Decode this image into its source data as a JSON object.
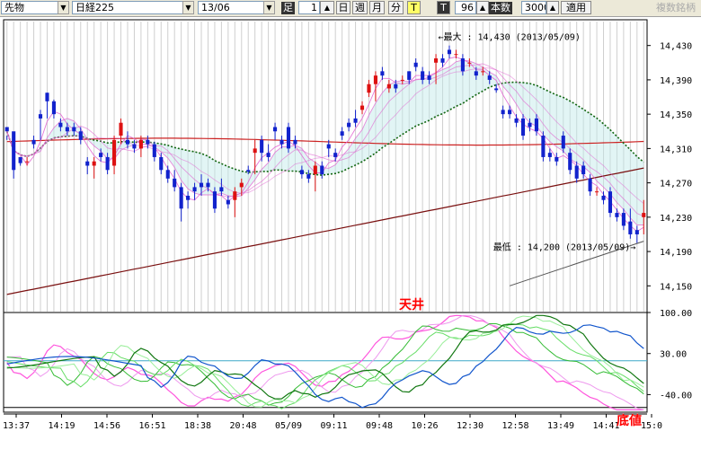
{
  "toolbar": {
    "instrument": "先物",
    "index": "日経225",
    "contract": "13/06",
    "bar_label": "足",
    "period_value": "1",
    "btn_day": "日",
    "btn_week": "週",
    "btn_month": "月",
    "btn_minute": "分",
    "btn_t1": "T",
    "btn_t2": "T",
    "count_value": "96",
    "count_label": "本数",
    "count2_value": "3000",
    "apply_label": "適用",
    "right_label": "複数銘柄"
  },
  "chart_data": [
    {
      "type": "candlestick",
      "title": "",
      "ylim": [
        14120,
        14460
      ],
      "y_ticks": [
        "14,430",
        "14,390",
        "14,350",
        "14,310",
        "14,270",
        "14,230",
        "14,190",
        "14,150"
      ],
      "y_tick_values": [
        14430,
        14390,
        14350,
        14310,
        14270,
        14230,
        14190,
        14150
      ],
      "colors": {
        "up": "#dd1111",
        "down": "#1122cc",
        "ma_fast": "#e060d0",
        "ma_mid": "#cc2222",
        "ma_slow": "#7a1010",
        "ma_green": "#116611",
        "cloud": "#bfe9e9",
        "trend": "#555555"
      },
      "candles": [
        [
          14335,
          14320,
          14325,
          14330
        ],
        [
          14330,
          14275,
          14305,
          14285
        ],
        [
          14300,
          14290,
          14295,
          14293
        ],
        [
          14295,
          14290,
          14300,
          14295
        ],
        [
          14320,
          14310,
          14325,
          14315
        ],
        [
          14350,
          14320,
          14355,
          14345
        ],
        [
          14375,
          14345,
          14375,
          14365
        ],
        [
          14365,
          14345,
          14367,
          14350
        ],
        [
          14340,
          14330,
          14345,
          14335
        ],
        [
          14335,
          14325,
          14340,
          14330
        ],
        [
          14335,
          14325,
          14340,
          14330
        ],
        [
          14330,
          14315,
          14335,
          14320
        ],
        [
          14295,
          14280,
          14300,
          14290
        ],
        [
          14290,
          14275,
          14300,
          14295
        ],
        [
          14305,
          14295,
          14310,
          14300
        ],
        [
          14300,
          14280,
          14305,
          14285
        ],
        [
          14290,
          14280,
          14325,
          14320
        ],
        [
          14325,
          14315,
          14345,
          14340
        ],
        [
          14320,
          14310,
          14330,
          14315
        ],
        [
          14315,
          14305,
          14320,
          14310
        ],
        [
          14310,
          14300,
          14325,
          14320
        ],
        [
          14320,
          14310,
          14325,
          14315
        ],
        [
          14315,
          14295,
          14318,
          14300
        ],
        [
          14300,
          14280,
          14305,
          14285
        ],
        [
          14285,
          14270,
          14290,
          14275
        ],
        [
          14275,
          14260,
          14285,
          14265
        ],
        [
          14265,
          14225,
          14270,
          14240
        ],
        [
          14255,
          14240,
          14260,
          14250
        ],
        [
          14265,
          14250,
          14270,
          14260
        ],
        [
          14270,
          14255,
          14280,
          14265
        ],
        [
          14270,
          14260,
          14275,
          14265
        ],
        [
          14260,
          14235,
          14265,
          14240
        ],
        [
          14265,
          14255,
          14275,
          14260
        ],
        [
          14250,
          14240,
          14255,
          14245
        ],
        [
          14250,
          14230,
          14265,
          14260
        ],
        [
          14265,
          14255,
          14275,
          14270
        ],
        [
          14285,
          14280,
          14290,
          14283
        ],
        [
          14305,
          14280,
          14320,
          14310
        ],
        [
          14320,
          14295,
          14325,
          14305
        ],
        [
          14305,
          14295,
          14315,
          14300
        ],
        [
          14335,
          14320,
          14340,
          14330
        ],
        [
          14320,
          14310,
          14325,
          14315
        ],
        [
          14335,
          14305,
          14340,
          14310
        ],
        [
          14320,
          14310,
          14325,
          14315
        ],
        [
          14285,
          14275,
          14290,
          14280
        ],
        [
          14280,
          14270,
          14285,
          14275
        ],
        [
          14280,
          14260,
          14295,
          14290
        ],
        [
          14290,
          14275,
          14295,
          14280
        ],
        [
          14315,
          14300,
          14320,
          14310
        ],
        [
          14305,
          14295,
          14310,
          14300
        ],
        [
          14330,
          14320,
          14335,
          14325
        ],
        [
          14340,
          14330,
          14345,
          14335
        ],
        [
          14345,
          14335,
          14355,
          14340
        ],
        [
          14355,
          14350,
          14365,
          14360
        ],
        [
          14375,
          14370,
          14390,
          14385
        ],
        [
          14385,
          14365,
          14400,
          14395
        ],
        [
          14400,
          14390,
          14405,
          14395
        ],
        [
          14380,
          14375,
          14390,
          14385
        ],
        [
          14385,
          14375,
          14390,
          14380
        ],
        [
          14390,
          14385,
          14395,
          14390
        ],
        [
          14400,
          14385,
          14400,
          14390
        ],
        [
          14410,
          14400,
          14415,
          14405
        ],
        [
          14400,
          14385,
          14405,
          14390
        ],
        [
          14395,
          14385,
          14400,
          14390
        ],
        [
          14410,
          14385,
          14420,
          14415
        ],
        [
          14415,
          14405,
          14420,
          14410
        ],
        [
          14425,
          14415,
          14430,
          14420
        ],
        [
          14420,
          14415,
          14425,
          14420
        ],
        [
          14415,
          14395,
          14420,
          14400
        ],
        [
          14410,
          14405,
          14415,
          14410
        ],
        [
          14400,
          14390,
          14405,
          14395
        ],
        [
          14400,
          14395,
          14405,
          14400
        ],
        [
          14395,
          14385,
          14400,
          14390
        ],
        [
          14380,
          14375,
          14385,
          14378
        ],
        [
          14355,
          14345,
          14360,
          14350
        ],
        [
          14355,
          14345,
          14360,
          14350
        ],
        [
          14345,
          14335,
          14350,
          14340
        ],
        [
          14345,
          14320,
          14350,
          14325
        ],
        [
          14340,
          14330,
          14345,
          14335
        ],
        [
          14345,
          14325,
          14350,
          14330
        ],
        [
          14325,
          14295,
          14330,
          14300
        ],
        [
          14305,
          14295,
          14310,
          14300
        ],
        [
          14300,
          14290,
          14305,
          14295
        ],
        [
          14325,
          14305,
          14330,
          14310
        ],
        [
          14305,
          14280,
          14310,
          14285
        ],
        [
          14290,
          14270,
          14295,
          14275
        ],
        [
          14290,
          14275,
          14295,
          14280
        ],
        [
          14275,
          14255,
          14280,
          14260
        ],
        [
          14260,
          14255,
          14265,
          14260
        ],
        [
          14255,
          14245,
          14260,
          14250
        ],
        [
          14260,
          14230,
          14265,
          14235
        ],
        [
          14235,
          14225,
          14240,
          14230
        ],
        [
          14235,
          14215,
          14240,
          14220
        ],
        [
          14225,
          14205,
          14240,
          14210
        ],
        [
          14215,
          14200,
          14220,
          14210
        ],
        [
          14230,
          14210,
          14250,
          14235
        ]
      ],
      "annotations": [
        {
          "text": "←最大 : 14,430 (2013/05/09)",
          "x_index": 67,
          "y": 14430
        },
        {
          "text": "最低 : 14,200 (2013/05/09)→",
          "x_index": 94,
          "y": 14200
        }
      ]
    },
    {
      "type": "line",
      "ylim": [
        -70,
        100
      ],
      "y_ticks": [
        "100.00",
        "30.00",
        "-40.00"
      ],
      "y_tick_values": [
        100,
        30,
        -40
      ],
      "annotations": [
        {
          "text": "天井",
          "color": "#ff0000",
          "position": "top"
        },
        {
          "text": "底値",
          "color": "#ff0000",
          "position": "bottom-right"
        }
      ]
    }
  ],
  "x_axis": {
    "labels": [
      "13:37",
      "14:19",
      "14:56",
      "16:51",
      "18:38",
      "20:48",
      "05/09",
      "09:11",
      "09:48",
      "10:26",
      "12:30",
      "12:58",
      "13:49",
      "14:41",
      "15:0"
    ]
  }
}
